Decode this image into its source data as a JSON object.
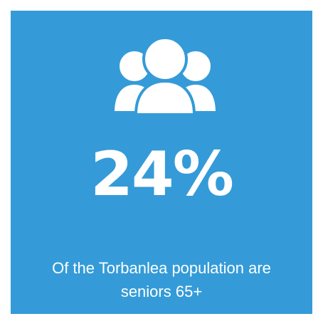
{
  "stat": {
    "value": "24%",
    "description_line1": "Of the Torbanlea population are",
    "description_line2": "seniors 65+"
  },
  "icon": "users-group-icon",
  "colors": {
    "background": "#349bd8",
    "foreground": "#ffffff",
    "page": "#ffffff"
  }
}
